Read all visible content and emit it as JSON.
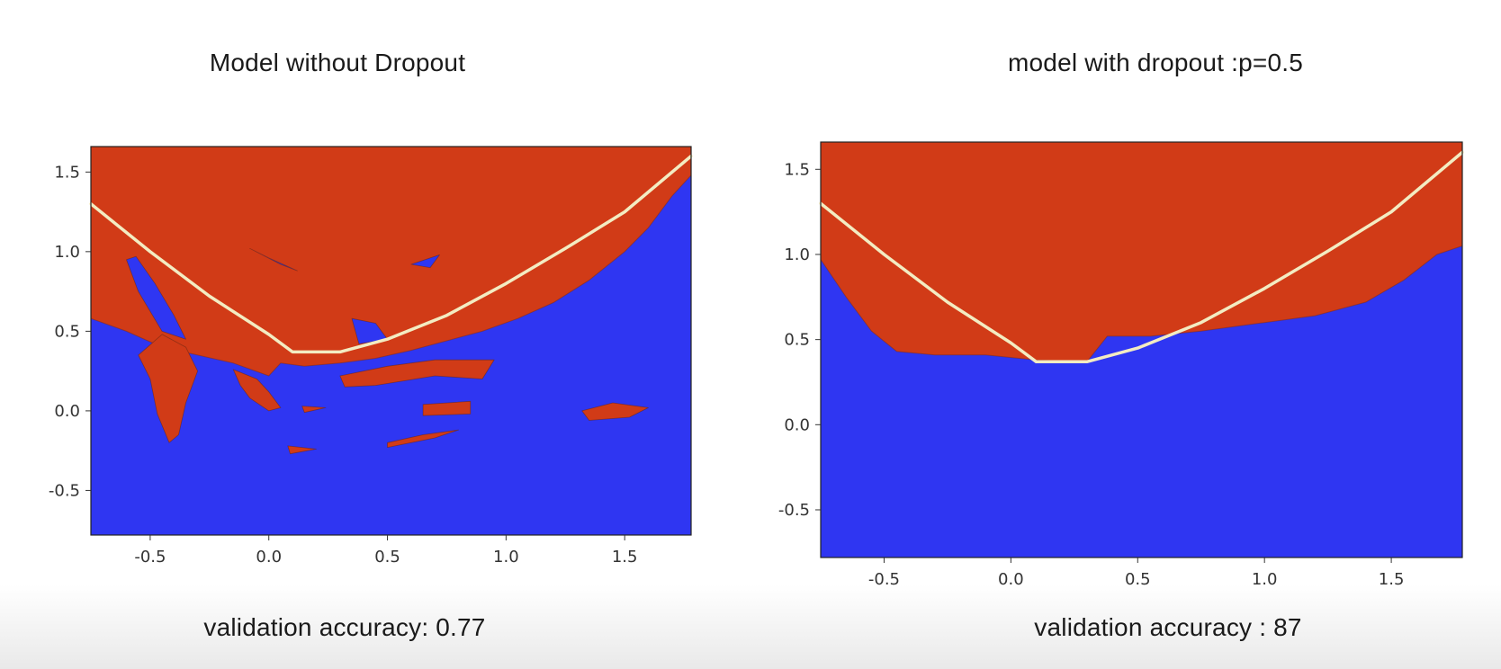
{
  "colors": {
    "class_a": "#d13b17",
    "class_b": "#2f36f2",
    "boundary": "#f3ecc2",
    "frame": "#222222"
  },
  "chart_data": [
    {
      "type": "heatmap",
      "title": "Model without Dropout",
      "caption": "validation accuracy: 0.77",
      "xlim": [
        -0.75,
        1.78
      ],
      "ylim": [
        -0.78,
        1.66
      ],
      "xticks": [
        -0.5,
        0.0,
        0.5,
        1.0,
        1.5
      ],
      "yticks": [
        -0.5,
        0.0,
        0.5,
        1.0,
        1.5
      ],
      "xtick_labels": [
        "-0.5",
        "0.0",
        "0.5",
        "1.0",
        "1.5"
      ],
      "ytick_labels": [
        "-0.5",
        "0.0",
        "0.5",
        "1.0",
        "1.5"
      ],
      "grid": false,
      "regions": [
        {
          "class": "class_a",
          "main_boundary": [
            [
              -0.75,
              0.58
            ],
            [
              -0.6,
              0.5
            ],
            [
              -0.45,
              0.4
            ],
            [
              -0.3,
              0.35
            ],
            [
              -0.15,
              0.3
            ],
            [
              0.0,
              0.22
            ],
            [
              0.05,
              0.3
            ],
            [
              0.15,
              0.28
            ],
            [
              0.3,
              0.3
            ],
            [
              0.45,
              0.33
            ],
            [
              0.6,
              0.38
            ],
            [
              0.75,
              0.44
            ],
            [
              0.9,
              0.5
            ],
            [
              1.05,
              0.58
            ],
            [
              1.2,
              0.68
            ],
            [
              1.35,
              0.82
            ],
            [
              1.5,
              1.0
            ],
            [
              1.6,
              1.15
            ],
            [
              1.7,
              1.35
            ],
            [
              1.78,
              1.48
            ]
          ]
        }
      ],
      "islands": [
        {
          "class": "class_b",
          "points": [
            [
              -0.6,
              0.95
            ],
            [
              -0.55,
              0.75
            ],
            [
              -0.45,
              0.5
            ],
            [
              -0.35,
              0.45
            ],
            [
              -0.4,
              0.6
            ],
            [
              -0.48,
              0.8
            ],
            [
              -0.56,
              0.97
            ]
          ]
        },
        {
          "class": "class_b",
          "points": [
            [
              -0.08,
              1.02
            ],
            [
              0.05,
              0.92
            ],
            [
              0.12,
              0.88
            ],
            [
              0.0,
              0.96
            ]
          ]
        },
        {
          "class": "class_b",
          "points": [
            [
              0.6,
              0.92
            ],
            [
              0.72,
              0.98
            ],
            [
              0.68,
              0.9
            ]
          ]
        },
        {
          "class": "class_b",
          "points": [
            [
              0.35,
              0.58
            ],
            [
              0.45,
              0.55
            ],
            [
              0.5,
              0.45
            ],
            [
              0.38,
              0.42
            ]
          ]
        },
        {
          "class": "class_a",
          "points": [
            [
              -0.45,
              0.48
            ],
            [
              -0.35,
              0.4
            ],
            [
              -0.3,
              0.25
            ],
            [
              -0.35,
              0.05
            ],
            [
              -0.38,
              -0.15
            ],
            [
              -0.42,
              -0.2
            ],
            [
              -0.47,
              -0.02
            ],
            [
              -0.5,
              0.2
            ],
            [
              -0.55,
              0.35
            ]
          ]
        },
        {
          "class": "class_a",
          "points": [
            [
              -0.15,
              0.26
            ],
            [
              -0.05,
              0.2
            ],
            [
              0.0,
              0.12
            ],
            [
              0.05,
              0.02
            ],
            [
              0.0,
              0.0
            ],
            [
              -0.08,
              0.08
            ],
            [
              -0.12,
              0.16
            ]
          ]
        },
        {
          "class": "class_a",
          "points": [
            [
              0.3,
              0.22
            ],
            [
              0.5,
              0.28
            ],
            [
              0.7,
              0.32
            ],
            [
              0.95,
              0.32
            ],
            [
              0.9,
              0.2
            ],
            [
              0.7,
              0.22
            ],
            [
              0.45,
              0.16
            ],
            [
              0.32,
              0.15
            ]
          ]
        },
        {
          "class": "class_a",
          "points": [
            [
              0.65,
              0.04
            ],
            [
              0.85,
              0.06
            ],
            [
              0.85,
              -0.02
            ],
            [
              0.65,
              -0.03
            ]
          ]
        },
        {
          "class": "class_a",
          "points": [
            [
              0.14,
              0.03
            ],
            [
              0.24,
              0.02
            ],
            [
              0.15,
              -0.01
            ]
          ]
        },
        {
          "class": "class_a",
          "points": [
            [
              1.32,
              0.0
            ],
            [
              1.45,
              0.05
            ],
            [
              1.6,
              0.02
            ],
            [
              1.52,
              -0.04
            ],
            [
              1.35,
              -0.06
            ]
          ]
        },
        {
          "class": "class_a",
          "points": [
            [
              0.5,
              -0.2
            ],
            [
              0.65,
              -0.15
            ],
            [
              0.8,
              -0.12
            ],
            [
              0.7,
              -0.17
            ],
            [
              0.5,
              -0.23
            ]
          ]
        },
        {
          "class": "class_a",
          "points": [
            [
              0.08,
              -0.22
            ],
            [
              0.2,
              -0.24
            ],
            [
              0.09,
              -0.27
            ]
          ]
        }
      ],
      "true_boundary": [
        [
          -0.75,
          1.3
        ],
        [
          -0.5,
          1.0
        ],
        [
          -0.25,
          0.72
        ],
        [
          0.0,
          0.48
        ],
        [
          0.1,
          0.37
        ],
        [
          0.3,
          0.37
        ],
        [
          0.5,
          0.45
        ],
        [
          0.75,
          0.6
        ],
        [
          1.0,
          0.8
        ],
        [
          1.25,
          1.02
        ],
        [
          1.5,
          1.25
        ],
        [
          1.78,
          1.6
        ]
      ]
    },
    {
      "type": "heatmap",
      "title": "model with dropout :p=0.5",
      "caption": "validation accuracy : 87",
      "xlim": [
        -0.75,
        1.78
      ],
      "ylim": [
        -0.78,
        1.66
      ],
      "xticks": [
        -0.5,
        0.0,
        0.5,
        1.0,
        1.5
      ],
      "yticks": [
        -0.5,
        0.0,
        0.5,
        1.0,
        1.5
      ],
      "xtick_labels": [
        "-0.5",
        "0.0",
        "0.5",
        "1.0",
        "1.5"
      ],
      "ytick_labels": [
        "-0.5",
        "0.0",
        "0.5",
        "1.0",
        "1.5"
      ],
      "grid": false,
      "regions": [
        {
          "class": "class_a",
          "main_boundary": [
            [
              -0.75,
              0.97
            ],
            [
              -0.65,
              0.75
            ],
            [
              -0.55,
              0.55
            ],
            [
              -0.45,
              0.43
            ],
            [
              -0.3,
              0.41
            ],
            [
              -0.1,
              0.41
            ],
            [
              0.1,
              0.38
            ],
            [
              0.3,
              0.37
            ],
            [
              0.38,
              0.52
            ],
            [
              0.55,
              0.52
            ],
            [
              0.75,
              0.55
            ],
            [
              1.0,
              0.6
            ],
            [
              1.2,
              0.64
            ],
            [
              1.4,
              0.72
            ],
            [
              1.55,
              0.85
            ],
            [
              1.68,
              1.0
            ],
            [
              1.78,
              1.05
            ]
          ]
        }
      ],
      "islands": [],
      "true_boundary": [
        [
          -0.75,
          1.3
        ],
        [
          -0.5,
          1.0
        ],
        [
          -0.25,
          0.72
        ],
        [
          0.0,
          0.48
        ],
        [
          0.1,
          0.37
        ],
        [
          0.3,
          0.37
        ],
        [
          0.5,
          0.45
        ],
        [
          0.75,
          0.6
        ],
        [
          1.0,
          0.8
        ],
        [
          1.25,
          1.02
        ],
        [
          1.5,
          1.25
        ],
        [
          1.78,
          1.6
        ]
      ]
    }
  ]
}
